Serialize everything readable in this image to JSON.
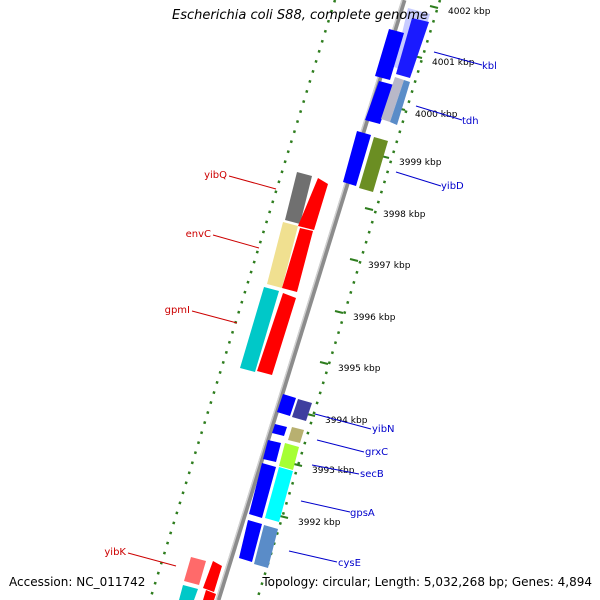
{
  "title": "Escherichia coli S88, complete genome",
  "accession": "Accession: NC_011742",
  "topology": "Topology: circular; Length: 5,032,268 bp; Genes: 4,894",
  "kbp_labels": [
    {
      "text": "4002 kbp"
    },
    {
      "text": "4001 kbp"
    },
    {
      "text": "4000 kbp"
    },
    {
      "text": "3999 kbp"
    },
    {
      "text": "3998 kbp"
    },
    {
      "text": "3997 kbp"
    },
    {
      "text": "3996 kbp"
    },
    {
      "text": "3995 kbp"
    },
    {
      "text": "3994 kbp"
    },
    {
      "text": "3993 kbp"
    },
    {
      "text": "3992 kbp"
    }
  ],
  "forward_genes": [
    {
      "name": "kbl",
      "color": "#0000ff"
    },
    {
      "name": "tdh",
      "color": "#0000ff"
    },
    {
      "name": "yibD",
      "color": "#0000ff"
    },
    {
      "name": "yibN",
      "color": "#0000ff"
    },
    {
      "name": "grxC",
      "color": "#0000ff"
    },
    {
      "name": "secB",
      "color": "#0000ff"
    },
    {
      "name": "gpsA",
      "color": "#0000ff"
    },
    {
      "name": "cysE",
      "color": "#0000ff"
    }
  ],
  "reverse_genes": [
    {
      "name": "yibQ",
      "color": "#ff0000"
    },
    {
      "name": "envC",
      "color": "#ff0000"
    },
    {
      "name": "gpmI",
      "color": "#ff0000"
    },
    {
      "name": "yibK",
      "color": "#ff0000"
    }
  ],
  "colors": {
    "backbone": "#8c8c8c",
    "tick_green": "#2e7d1e",
    "forward_label": "#0000cc",
    "reverse_label": "#cc0000"
  }
}
